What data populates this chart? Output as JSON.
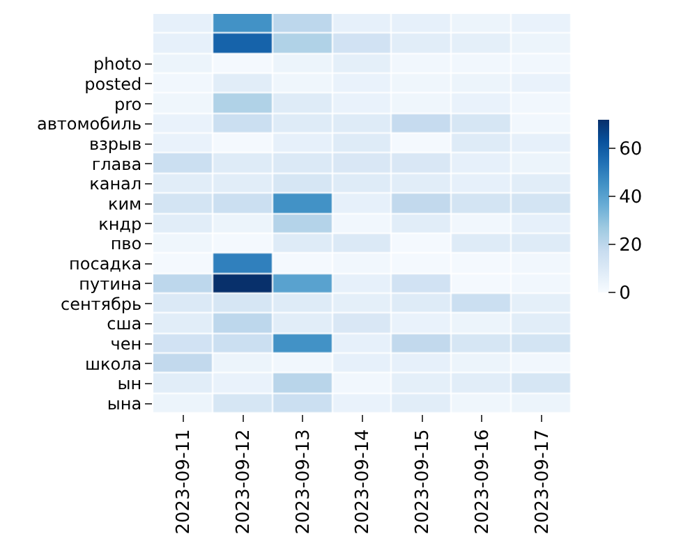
{
  "chart_data": {
    "type": "heatmap",
    "categories": [
      "2023-09-11",
      "2023-09-12",
      "2023-09-13",
      "2023-09-14",
      "2023-09-15",
      "2023-09-16",
      "2023-09-17"
    ],
    "y_categories": [
      null,
      null,
      "photo",
      "posted",
      "pro",
      "автомобиль",
      "взрыв",
      "глава",
      "канал",
      "ким",
      "кндр",
      "пво",
      "посадка",
      "путина",
      "сентябрь",
      "сша",
      "чен",
      "школа",
      "ын",
      "ына"
    ],
    "cells": [
      [
        6,
        45,
        20,
        6,
        6,
        4,
        5
      ],
      [
        6,
        58,
        23,
        14,
        8,
        7,
        4
      ],
      [
        4,
        1,
        4,
        7,
        2,
        2,
        2
      ],
      [
        2,
        8,
        3,
        5,
        3,
        4,
        5
      ],
      [
        3,
        23,
        9,
        5,
        3,
        5,
        2
      ],
      [
        5,
        16,
        9,
        9,
        18,
        12,
        2
      ],
      [
        5,
        1,
        6,
        9,
        1,
        9,
        6
      ],
      [
        16,
        9,
        10,
        11,
        11,
        6,
        4
      ],
      [
        8,
        8,
        12,
        9,
        8,
        6,
        8
      ],
      [
        13,
        16,
        45,
        6,
        19,
        13,
        13
      ],
      [
        8,
        4,
        22,
        2,
        8,
        2,
        6
      ],
      [
        3,
        1,
        9,
        10,
        1,
        9,
        9
      ],
      [
        1,
        50,
        1,
        2,
        1,
        1,
        2
      ],
      [
        20,
        72,
        40,
        6,
        14,
        1,
        2
      ],
      [
        10,
        12,
        9,
        7,
        9,
        16,
        7
      ],
      [
        8,
        20,
        8,
        11,
        5,
        4,
        8
      ],
      [
        14,
        16,
        45,
        6,
        19,
        12,
        13
      ],
      [
        19,
        4,
        2,
        6,
        6,
        4,
        2
      ],
      [
        8,
        5,
        21,
        2,
        7,
        8,
        12
      ],
      [
        4,
        12,
        16,
        5,
        8,
        3,
        4
      ]
    ],
    "clim": [
      0,
      72
    ],
    "cticks": [
      0,
      20,
      40,
      60
    ]
  }
}
